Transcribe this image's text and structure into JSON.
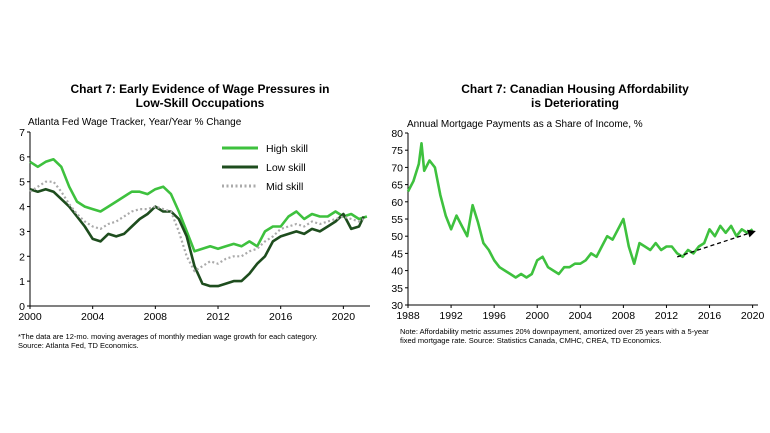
{
  "chart_data": [
    {
      "type": "line",
      "title_line1": "Chart 7: Early Evidence  of Wage Pressures in",
      "title_line2": "Low-Skill  Occupations",
      "subtitle": "Atlanta Fed Wage Tracker, Year/Year % Change",
      "xlabel": "",
      "ylabel": "",
      "xlim": [
        2000,
        2021.7
      ],
      "ylim": [
        0,
        7
      ],
      "xticks": [
        2000,
        2004,
        2008,
        2012,
        2016,
        2020
      ],
      "yticks": [
        0,
        1,
        2,
        3,
        4,
        5,
        6,
        7
      ],
      "legend_position": "top-right",
      "note_line1": "*The data are 12-mo. moving  averages of monthly  median  wage growth for each category.",
      "note_line2": "Source:  Atlanta Fed, TD Economics.",
      "series": [
        {
          "name": "High skill",
          "color": "#3ec13e",
          "style": "solid",
          "x": [
            2000,
            2000.5,
            2001,
            2001.5,
            2002,
            2002.5,
            2003,
            2003.5,
            2004,
            2004.5,
            2005,
            2005.5,
            2006,
            2006.5,
            2007,
            2007.5,
            2008,
            2008.5,
            2009,
            2009.5,
            2010,
            2010.5,
            2011,
            2011.5,
            2012,
            2012.5,
            2013,
            2013.5,
            2014,
            2014.5,
            2015,
            2015.5,
            2016,
            2016.5,
            2017,
            2017.5,
            2018,
            2018.5,
            2019,
            2019.5,
            2020,
            2020.5,
            2021,
            2021.5
          ],
          "y": [
            5.8,
            5.6,
            5.8,
            5.9,
            5.6,
            4.8,
            4.2,
            4.0,
            3.9,
            3.8,
            4.0,
            4.2,
            4.4,
            4.6,
            4.6,
            4.5,
            4.7,
            4.8,
            4.5,
            3.8,
            3.0,
            2.2,
            2.3,
            2.4,
            2.3,
            2.4,
            2.5,
            2.4,
            2.6,
            2.4,
            3.0,
            3.2,
            3.2,
            3.6,
            3.8,
            3.5,
            3.7,
            3.6,
            3.6,
            3.8,
            3.6,
            3.7,
            3.5,
            3.6
          ]
        },
        {
          "name": "Low skill",
          "color": "#1e4d1e",
          "style": "solid",
          "x": [
            2000,
            2000.5,
            2001,
            2001.5,
            2002,
            2002.5,
            2003,
            2003.5,
            2004,
            2004.5,
            2005,
            2005.5,
            2006,
            2006.5,
            2007,
            2007.5,
            2008,
            2008.5,
            2009,
            2009.5,
            2010,
            2010.5,
            2011,
            2011.5,
            2012,
            2012.5,
            2013,
            2013.5,
            2014,
            2014.5,
            2015,
            2015.5,
            2016,
            2016.5,
            2017,
            2017.5,
            2018,
            2018.5,
            2019,
            2019.5,
            2020,
            2020.5,
            2021,
            2021.3
          ],
          "y": [
            4.7,
            4.6,
            4.7,
            4.6,
            4.3,
            4.0,
            3.6,
            3.2,
            2.7,
            2.6,
            2.9,
            2.8,
            2.9,
            3.2,
            3.5,
            3.7,
            4.0,
            3.8,
            3.8,
            3.5,
            2.8,
            1.6,
            0.9,
            0.8,
            0.8,
            0.9,
            1.0,
            1.0,
            1.3,
            1.7,
            2.0,
            2.6,
            2.8,
            2.9,
            3.0,
            2.9,
            3.1,
            3.0,
            3.2,
            3.4,
            3.7,
            3.1,
            3.2,
            3.6
          ]
        },
        {
          "name": "Mid skill",
          "color": "#aaaaaa",
          "style": "dotted",
          "x": [
            2000,
            2000.5,
            2001,
            2001.5,
            2002,
            2002.5,
            2003,
            2003.5,
            2004,
            2004.5,
            2005,
            2005.5,
            2006,
            2006.5,
            2007,
            2007.5,
            2008,
            2008.5,
            2009,
            2009.5,
            2010,
            2010.5,
            2011,
            2011.5,
            2012,
            2012.5,
            2013,
            2013.5,
            2014,
            2014.5,
            2015,
            2015.5,
            2016,
            2016.5,
            2017,
            2017.5,
            2018,
            2018.5,
            2019,
            2019.5,
            2020,
            2020.5,
            2021,
            2021.3
          ],
          "y": [
            4.6,
            4.8,
            5.0,
            5.0,
            4.6,
            4.1,
            3.7,
            3.4,
            3.2,
            3.1,
            3.3,
            3.4,
            3.6,
            3.8,
            3.9,
            3.9,
            4.0,
            3.9,
            3.8,
            3.0,
            2.0,
            1.4,
            1.6,
            1.8,
            1.7,
            1.9,
            2.0,
            2.0,
            2.2,
            2.3,
            2.6,
            2.8,
            3.1,
            3.2,
            3.3,
            3.2,
            3.4,
            3.3,
            3.4,
            3.5,
            3.6,
            3.5,
            3.4,
            3.5
          ]
        }
      ]
    },
    {
      "type": "line",
      "title_line1": "Chart 7: Canadian Housing Affordability",
      "title_line2": "is Deteriorating",
      "subtitle": "Annual Mortgage Payments as a Share of Income, %",
      "xlabel": "",
      "ylabel": "",
      "xlim": [
        1988,
        2020.5
      ],
      "ylim": [
        30,
        80
      ],
      "xticks": [
        1988,
        1992,
        1996,
        2000,
        2004,
        2008,
        2012,
        2016,
        2020
      ],
      "yticks": [
        30,
        35,
        40,
        45,
        50,
        55,
        60,
        65,
        70,
        75,
        80
      ],
      "note_line1": "Note:  Affordability metric assumes 20% downpayment,  amortized over 25 years with a 5-year",
      "note_line2": "fixed mortgage  rate. Source: Statistics Canada,  CMHC,  CREA,  TD Economics.",
      "trend_arrow": {
        "from": [
          2013,
          44
        ],
        "to": [
          2020.3,
          51.5
        ],
        "color": "#000000",
        "style": "dashed"
      },
      "series": [
        {
          "name": "",
          "color": "#3ec13e",
          "style": "solid",
          "x": [
            1988,
            1988.5,
            1989,
            1989.25,
            1989.5,
            1990,
            1990.5,
            1991,
            1991.5,
            1992,
            1992.5,
            1993,
            1993.5,
            1994,
            1994.5,
            1995,
            1995.5,
            1996,
            1996.5,
            1997,
            1997.5,
            1998,
            1998.5,
            1999,
            1999.5,
            2000,
            2000.5,
            2001,
            2001.5,
            2002,
            2002.5,
            2003,
            2003.5,
            2004,
            2004.5,
            2005,
            2005.5,
            2006,
            2006.5,
            2007,
            2007.5,
            2008,
            2008.5,
            2009,
            2009.5,
            2010,
            2010.5,
            2011,
            2011.5,
            2012,
            2012.5,
            2013,
            2013.5,
            2014,
            2014.5,
            2015,
            2015.5,
            2016,
            2016.5,
            2017,
            2017.5,
            2018,
            2018.5,
            2019,
            2019.5,
            2020
          ],
          "y": [
            63,
            66,
            71,
            77,
            69,
            72,
            70,
            62,
            56,
            52,
            56,
            53,
            50,
            59,
            54,
            48,
            46,
            43,
            41,
            40,
            39,
            38,
            39,
            38,
            39,
            43,
            44,
            41,
            40,
            39,
            41,
            41,
            42,
            42,
            43,
            45,
            44,
            47,
            50,
            49,
            52,
            55,
            47,
            42,
            48,
            47,
            46,
            48,
            46,
            47,
            47,
            45,
            44,
            46,
            45,
            47,
            48,
            52,
            50,
            53,
            51,
            53,
            50,
            52,
            51,
            52
          ]
        }
      ]
    }
  ]
}
